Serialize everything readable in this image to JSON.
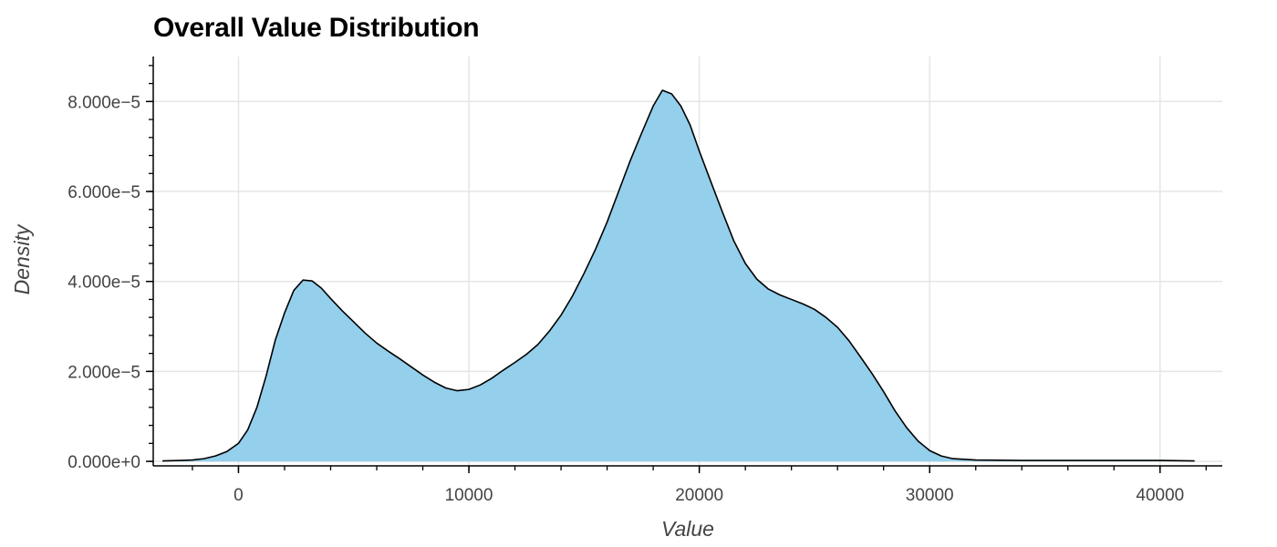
{
  "chart_data": {
    "type": "area",
    "title": "Overall Value Distribution",
    "xlabel": "Value",
    "ylabel": "Density",
    "xlim": [
      -3700,
      42700
    ],
    "ylim": [
      -1e-06,
      9e-05
    ],
    "grid": true,
    "x_ticks": [
      {
        "value": 0,
        "label": "0"
      },
      {
        "value": 10000,
        "label": "10000"
      },
      {
        "value": 20000,
        "label": "20000"
      },
      {
        "value": 30000,
        "label": "30000"
      },
      {
        "value": 40000,
        "label": "40000"
      }
    ],
    "y_ticks": [
      {
        "value": 0,
        "label": "0.000e+0"
      },
      {
        "value": 2e-05,
        "label": "2.000e−5"
      },
      {
        "value": 4e-05,
        "label": "4.000e−5"
      },
      {
        "value": 6e-05,
        "label": "6.000e−5"
      },
      {
        "value": 8e-05,
        "label": "8.000e−5"
      }
    ],
    "x_minor_step": 2000,
    "y_minor_step": 4e-06,
    "series": [
      {
        "fill_color": "#94cfec",
        "line_color": "#000000",
        "points": [
          [
            -3300,
            1e-07
          ],
          [
            -2500,
            2e-07
          ],
          [
            -2000,
            3e-07
          ],
          [
            -1500,
            6e-07
          ],
          [
            -1000,
            1.2e-06
          ],
          [
            -500,
            2.2e-06
          ],
          [
            0,
            4e-06
          ],
          [
            400,
            7e-06
          ],
          [
            800,
            1.2e-05
          ],
          [
            1200,
            1.9e-05
          ],
          [
            1600,
            2.7e-05
          ],
          [
            2000,
            3.3e-05
          ],
          [
            2400,
            3.8e-05
          ],
          [
            2800,
            4.03e-05
          ],
          [
            3200,
            4.01e-05
          ],
          [
            3600,
            3.85e-05
          ],
          [
            4000,
            3.62e-05
          ],
          [
            4500,
            3.35e-05
          ],
          [
            5000,
            3.1e-05
          ],
          [
            5500,
            2.85e-05
          ],
          [
            6000,
            2.63e-05
          ],
          [
            6500,
            2.45e-05
          ],
          [
            7000,
            2.28e-05
          ],
          [
            7500,
            2.1e-05
          ],
          [
            8000,
            1.92e-05
          ],
          [
            8500,
            1.76e-05
          ],
          [
            9000,
            1.63e-05
          ],
          [
            9500,
            1.57e-05
          ],
          [
            10000,
            1.6e-05
          ],
          [
            10500,
            1.7e-05
          ],
          [
            11000,
            1.85e-05
          ],
          [
            11500,
            2.03e-05
          ],
          [
            12000,
            2.2e-05
          ],
          [
            12500,
            2.38e-05
          ],
          [
            13000,
            2.6e-05
          ],
          [
            13500,
            2.9e-05
          ],
          [
            14000,
            3.25e-05
          ],
          [
            14500,
            3.68e-05
          ],
          [
            15000,
            4.18e-05
          ],
          [
            15500,
            4.72e-05
          ],
          [
            16000,
            5.32e-05
          ],
          [
            16500,
            6e-05
          ],
          [
            17000,
            6.68e-05
          ],
          [
            17500,
            7.3e-05
          ],
          [
            18000,
            7.9e-05
          ],
          [
            18400,
            8.25e-05
          ],
          [
            18800,
            8.17e-05
          ],
          [
            19200,
            7.9e-05
          ],
          [
            19600,
            7.48e-05
          ],
          [
            20000,
            6.9e-05
          ],
          [
            20500,
            6.22e-05
          ],
          [
            21000,
            5.55e-05
          ],
          [
            21500,
            4.9e-05
          ],
          [
            22000,
            4.4e-05
          ],
          [
            22500,
            4.05e-05
          ],
          [
            23000,
            3.83e-05
          ],
          [
            23500,
            3.7e-05
          ],
          [
            24000,
            3.6e-05
          ],
          [
            24500,
            3.5e-05
          ],
          [
            25000,
            3.38e-05
          ],
          [
            25500,
            3.2e-05
          ],
          [
            26000,
            2.98e-05
          ],
          [
            26500,
            2.68e-05
          ],
          [
            27000,
            2.32e-05
          ],
          [
            27500,
            1.95e-05
          ],
          [
            28000,
            1.55e-05
          ],
          [
            28500,
            1.12e-05
          ],
          [
            29000,
            7.5e-06
          ],
          [
            29500,
            4.5e-06
          ],
          [
            30000,
            2.4e-06
          ],
          [
            30500,
            1.2e-06
          ],
          [
            31000,
            6e-07
          ],
          [
            32000,
            3e-07
          ],
          [
            34000,
            2e-07
          ],
          [
            37000,
            2e-07
          ],
          [
            40000,
            2e-07
          ],
          [
            41500,
            1e-07
          ]
        ]
      }
    ]
  }
}
